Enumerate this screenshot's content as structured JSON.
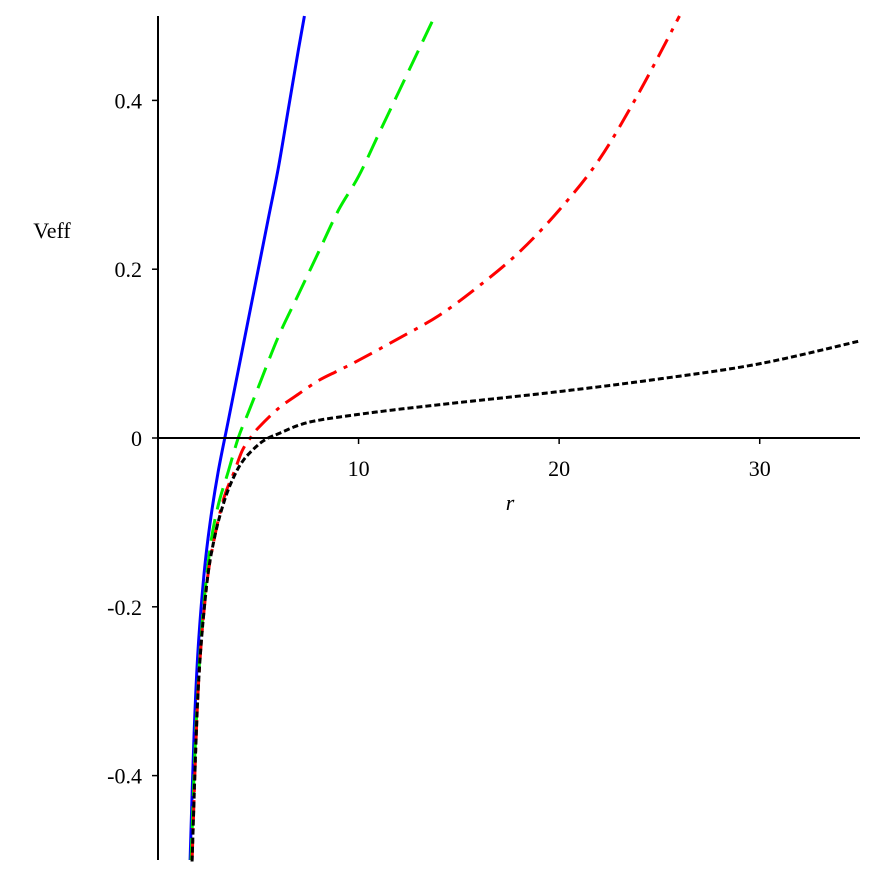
{
  "chart_data": {
    "type": "line",
    "title": "",
    "xlabel": "r",
    "ylabel": "Veff",
    "xlim": [
      0,
      35
    ],
    "ylim": [
      -0.5,
      0.5
    ],
    "grid": false,
    "legend": "none",
    "x_ticks": [
      10,
      20,
      30
    ],
    "x_tick_labels": [
      "10",
      "20",
      "30"
    ],
    "y_ticks": [
      -0.4,
      -0.2,
      0,
      0.2,
      0.4
    ],
    "y_tick_labels": [
      "-0.4",
      "-0.2",
      "0",
      "0.2",
      "0.4"
    ],
    "series": [
      {
        "color": "#0000ff",
        "style": "solid",
        "x": [
          1.6,
          1.8,
          2.0,
          2.3,
          2.6,
          3.0,
          3.5,
          4.0,
          4.5,
          5.0,
          5.5,
          6.0,
          6.5,
          7.0,
          7.3
        ],
        "y": [
          -0.5,
          -0.35,
          -0.25,
          -0.16,
          -0.1,
          -0.04,
          0.02,
          0.08,
          0.14,
          0.2,
          0.26,
          0.32,
          0.39,
          0.46,
          0.5
        ]
      },
      {
        "color": "#00ee00",
        "style": "dashed",
        "x": [
          1.65,
          1.9,
          2.2,
          2.6,
          3.0,
          3.5,
          4.0,
          4.5,
          5.0,
          6.0,
          7.0,
          8.0,
          9.0,
          10.0,
          11.0,
          12.0,
          13.0,
          13.8
        ],
        "y": [
          -0.5,
          -0.34,
          -0.22,
          -0.13,
          -0.08,
          -0.04,
          0.0,
          0.03,
          0.06,
          0.12,
          0.17,
          0.22,
          0.27,
          0.31,
          0.36,
          0.41,
          0.46,
          0.5
        ]
      },
      {
        "color": "#ff0000",
        "style": "dashdot",
        "x": [
          1.7,
          2.0,
          2.4,
          2.8,
          3.3,
          3.8,
          4.2,
          4.6,
          5.0,
          6.0,
          7.0,
          8.0,
          9.0,
          10.0,
          12.0,
          14.0,
          16.0,
          18.0,
          20.0,
          22.0,
          24.0,
          26.0
        ],
        "y": [
          -0.5,
          -0.3,
          -0.18,
          -0.12,
          -0.07,
          -0.04,
          -0.015,
          0.0,
          0.012,
          0.035,
          0.052,
          0.068,
          0.08,
          0.092,
          0.118,
          0.145,
          0.18,
          0.22,
          0.27,
          0.33,
          0.41,
          0.5
        ]
      },
      {
        "color": "#000000",
        "style": "dotted",
        "x": [
          1.7,
          2.0,
          2.4,
          2.8,
          3.3,
          3.8,
          4.3,
          5.0,
          5.5,
          6.0,
          7.0,
          8.0,
          10.0,
          12.0,
          15.0,
          20.0,
          25.0,
          30.0,
          35.0
        ],
        "y": [
          -0.5,
          -0.3,
          -0.18,
          -0.12,
          -0.075,
          -0.045,
          -0.025,
          -0.008,
          0.0,
          0.005,
          0.015,
          0.021,
          0.028,
          0.034,
          0.042,
          0.055,
          0.07,
          0.088,
          0.115
        ]
      }
    ]
  }
}
